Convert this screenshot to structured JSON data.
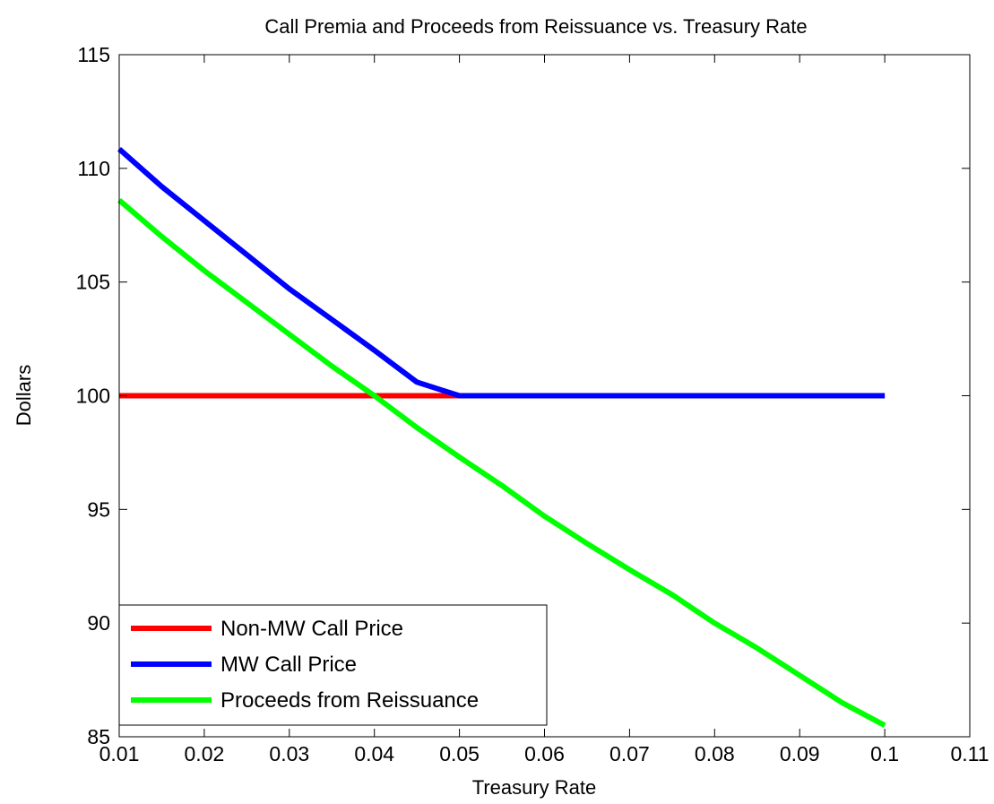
{
  "chart_data": {
    "type": "line",
    "title": "Call Premia and Proceeds from Reissuance vs. Treasury Rate",
    "xlabel": "Treasury Rate",
    "ylabel": "Dollars",
    "xlim": [
      0.01,
      0.11
    ],
    "ylim": [
      85,
      115
    ],
    "x_ticks": [
      "0.01",
      "0.02",
      "0.03",
      "0.04",
      "0.05",
      "0.06",
      "0.07",
      "0.08",
      "0.09",
      "0.1",
      "0.11"
    ],
    "y_ticks": [
      "85",
      "90",
      "95",
      "100",
      "105",
      "110",
      "115"
    ],
    "grid": false,
    "legend_position": "bottom-left",
    "series": [
      {
        "name": "Non-MW Call Price",
        "color": "#ff0000",
        "x": [
          0.01,
          0.02,
          0.03,
          0.04,
          0.05,
          0.06,
          0.07,
          0.08,
          0.09,
          0.1
        ],
        "y": [
          100,
          100,
          100,
          100,
          100,
          100,
          100,
          100,
          100,
          100
        ]
      },
      {
        "name": "MW Call Price",
        "color": "#0000ff",
        "x": [
          0.01,
          0.015,
          0.02,
          0.025,
          0.03,
          0.035,
          0.04,
          0.045,
          0.05,
          0.06,
          0.07,
          0.08,
          0.09,
          0.1
        ],
        "y": [
          110.85,
          109.2,
          107.7,
          106.2,
          104.7,
          103.35,
          102.0,
          100.6,
          100,
          100,
          100,
          100,
          100,
          100
        ]
      },
      {
        "name": "Proceeds from Reissuance",
        "color": "#00ff00",
        "x": [
          0.01,
          0.015,
          0.02,
          0.025,
          0.03,
          0.035,
          0.04,
          0.045,
          0.05,
          0.055,
          0.06,
          0.065,
          0.07,
          0.075,
          0.08,
          0.085,
          0.09,
          0.095,
          0.1
        ],
        "y": [
          108.6,
          107.0,
          105.5,
          104.1,
          102.7,
          101.3,
          100.0,
          98.6,
          97.3,
          96.05,
          94.7,
          93.5,
          92.35,
          91.25,
          90.0,
          88.9,
          87.7,
          86.5,
          85.5
        ]
      }
    ]
  }
}
